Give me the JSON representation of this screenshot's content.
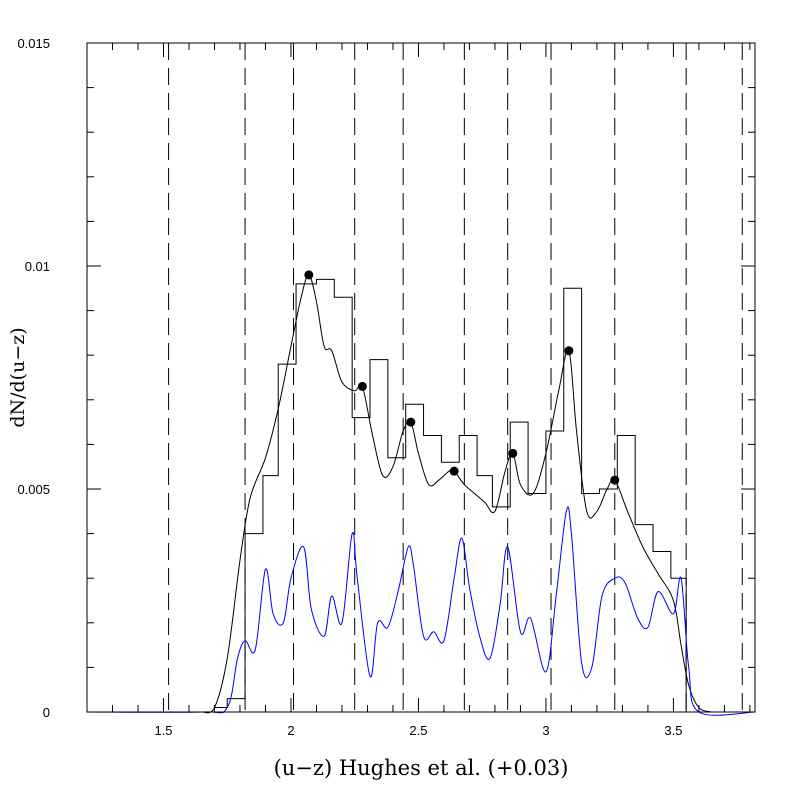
{
  "chart_data": {
    "type": "line",
    "xlabel": "(u−z) Hughes et al. (+0.03)",
    "ylabel": "dN/d(u−z)",
    "xlim": [
      1.2,
      3.82
    ],
    "ylim": [
      0,
      0.015
    ],
    "x_ticks": [
      1.5,
      2,
      2.5,
      3,
      3.5
    ],
    "x_tick_labels": [
      "1.5",
      "2",
      "2.5",
      "3",
      "3.5"
    ],
    "y_ticks": [
      0,
      0.005,
      0.01,
      0.015
    ],
    "y_tick_labels": [
      "0",
      "0.005",
      "0.01",
      "0.015"
    ],
    "grid": false,
    "vertical_dashed_lines": [
      1.52,
      1.82,
      2.01,
      2.25,
      2.44,
      2.68,
      2.85,
      3.02,
      3.27,
      3.55,
      3.77
    ],
    "histogram": {
      "color": "#000000",
      "edges": [
        1.7,
        1.75,
        1.82,
        1.89,
        1.95,
        2.02,
        2.1,
        2.17,
        2.24,
        2.31,
        2.38,
        2.45,
        2.52,
        2.59,
        2.66,
        2.73,
        2.79,
        2.86,
        2.93,
        3.0,
        3.07,
        3.14,
        3.21,
        3.28,
        3.35,
        3.42,
        3.49,
        3.55
      ],
      "values": [
        0.0001,
        0.0003,
        0.004,
        0.0053,
        0.0078,
        0.0096,
        0.0097,
        0.0093,
        0.0066,
        0.0079,
        0.0057,
        0.0069,
        0.0062,
        0.0056,
        0.0062,
        0.0053,
        0.0046,
        0.0065,
        0.0049,
        0.0063,
        0.0095,
        0.0049,
        0.005,
        0.0062,
        0.0042,
        0.0036,
        0.003
      ]
    },
    "series": [
      {
        "color": "#000000",
        "x": [
          1.65,
          1.7,
          1.75,
          1.8,
          1.84,
          1.9,
          1.95,
          2.0,
          2.04,
          2.07,
          2.1,
          2.13,
          2.16,
          2.2,
          2.25,
          2.28,
          2.32,
          2.36,
          2.4,
          2.44,
          2.47,
          2.5,
          2.54,
          2.58,
          2.62,
          2.64,
          2.68,
          2.72,
          2.76,
          2.8,
          2.84,
          2.87,
          2.9,
          2.95,
          3.0,
          3.05,
          3.09,
          3.12,
          3.16,
          3.2,
          3.24,
          3.27,
          3.32,
          3.38,
          3.44,
          3.5,
          3.53,
          3.56,
          3.6,
          3.65
        ],
        "y": [
          0.0,
          0.0001,
          0.0012,
          0.0034,
          0.0048,
          0.0057,
          0.0068,
          0.0082,
          0.0093,
          0.0098,
          0.0092,
          0.0082,
          0.0081,
          0.0074,
          0.0072,
          0.0073,
          0.0062,
          0.0053,
          0.0055,
          0.0063,
          0.0065,
          0.0058,
          0.0051,
          0.0052,
          0.0054,
          0.0054,
          0.0051,
          0.0049,
          0.0047,
          0.0045,
          0.0054,
          0.0058,
          0.0051,
          0.0049,
          0.0058,
          0.0072,
          0.0081,
          0.0063,
          0.0045,
          0.0045,
          0.005,
          0.0052,
          0.0045,
          0.0037,
          0.0031,
          0.0025,
          0.0015,
          0.0006,
          0.0001,
          0.0
        ]
      },
      {
        "color": "#0000ff",
        "x": [
          1.2,
          1.65,
          1.75,
          1.79,
          1.82,
          1.86,
          1.9,
          1.93,
          1.97,
          2.0,
          2.05,
          2.08,
          2.13,
          2.16,
          2.2,
          2.24,
          2.26,
          2.31,
          2.34,
          2.38,
          2.42,
          2.46,
          2.48,
          2.52,
          2.56,
          2.6,
          2.64,
          2.67,
          2.7,
          2.74,
          2.78,
          2.82,
          2.85,
          2.9,
          2.94,
          3.0,
          3.04,
          3.08,
          3.1,
          3.14,
          3.18,
          3.22,
          3.27,
          3.31,
          3.36,
          3.4,
          3.44,
          3.5,
          3.53,
          3.56,
          3.6,
          3.82
        ],
        "y": [
          0.0,
          0.0,
          0.0001,
          0.0012,
          0.0016,
          0.0014,
          0.0032,
          0.0022,
          0.002,
          0.003,
          0.0037,
          0.0023,
          0.0017,
          0.0026,
          0.002,
          0.004,
          0.003,
          0.0008,
          0.002,
          0.0019,
          0.0027,
          0.0037,
          0.0033,
          0.0017,
          0.0018,
          0.0016,
          0.003,
          0.0039,
          0.0028,
          0.0017,
          0.0012,
          0.0024,
          0.0037,
          0.0018,
          0.0021,
          0.0009,
          0.0026,
          0.0045,
          0.004,
          0.0011,
          0.001,
          0.0026,
          0.003,
          0.0029,
          0.0021,
          0.0019,
          0.0027,
          0.0022,
          0.003,
          0.001,
          0.0,
          0.0
        ]
      }
    ],
    "points": {
      "color": "#000000",
      "x": [
        2.07,
        2.28,
        2.47,
        2.64,
        2.87,
        3.09,
        3.27
      ],
      "y": [
        0.0098,
        0.0073,
        0.0065,
        0.0054,
        0.0058,
        0.0081,
        0.0052
      ]
    }
  }
}
